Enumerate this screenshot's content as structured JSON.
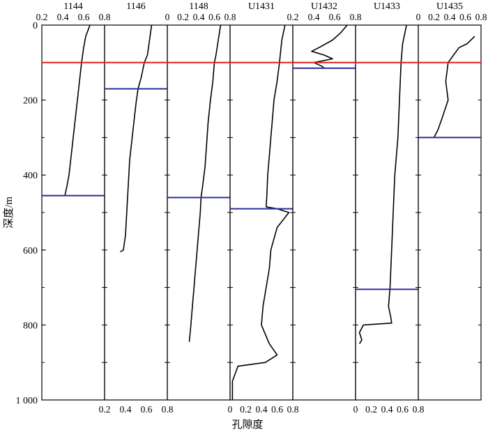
{
  "chart_data": {
    "type": "line",
    "ylabel": "深度/m",
    "xlabel": "孔隙度",
    "ylim": [
      0,
      1000
    ],
    "y_ticks": [
      "0",
      "200",
      "400",
      "600",
      "800",
      "1 000"
    ],
    "reference_depth": 100,
    "colors": {
      "reference_line": "#e0201c",
      "boundary_line": "#2b2f9a",
      "curve": "#000000"
    },
    "panels": [
      {
        "name": "1144",
        "xlim": [
          0.2,
          0.8
        ],
        "top_ticks": [
          "0.2",
          "0.4",
          "0.6",
          "0.8"
        ],
        "bottom_ticks": [],
        "boundary_depth": 455,
        "series": [
          [
            0.66,
            0
          ],
          [
            0.62,
            30
          ],
          [
            0.6,
            60
          ],
          [
            0.58,
            100
          ],
          [
            0.56,
            150
          ],
          [
            0.54,
            200
          ],
          [
            0.52,
            250
          ],
          [
            0.5,
            300
          ],
          [
            0.48,
            350
          ],
          [
            0.46,
            400
          ],
          [
            0.44,
            430
          ],
          [
            0.42,
            455
          ]
        ]
      },
      {
        "name": "1146",
        "xlim": [
          0.2,
          0.8
        ],
        "top_ticks": [],
        "bottom_ticks": [
          "0.2",
          "0.4",
          "0.6",
          "0.8"
        ],
        "boundary_depth": 170,
        "series": [
          [
            0.65,
            0
          ],
          [
            0.63,
            40
          ],
          [
            0.61,
            80
          ],
          [
            0.58,
            100
          ],
          [
            0.55,
            140
          ],
          [
            0.52,
            170
          ],
          [
            0.5,
            210
          ],
          [
            0.48,
            260
          ],
          [
            0.46,
            310
          ],
          [
            0.44,
            360
          ],
          [
            0.43,
            410
          ],
          [
            0.42,
            460
          ],
          [
            0.41,
            510
          ],
          [
            0.4,
            560
          ],
          [
            0.38,
            600
          ],
          [
            0.35,
            605
          ]
        ]
      },
      {
        "name": "1148",
        "xlim": [
          0,
          0.8
        ],
        "top_ticks": [
          "0",
          "0.2",
          "0.4",
          "0.6",
          "0.8"
        ],
        "bottom_ticks": [],
        "boundary_depth": 460,
        "series": [
          [
            0.68,
            0
          ],
          [
            0.65,
            40
          ],
          [
            0.62,
            80
          ],
          [
            0.6,
            100
          ],
          [
            0.58,
            150
          ],
          [
            0.55,
            200
          ],
          [
            0.52,
            260
          ],
          [
            0.5,
            320
          ],
          [
            0.48,
            380
          ],
          [
            0.45,
            430
          ],
          [
            0.43,
            460
          ],
          [
            0.42,
            500
          ],
          [
            0.4,
            550
          ],
          [
            0.38,
            600
          ],
          [
            0.36,
            650
          ],
          [
            0.34,
            700
          ],
          [
            0.32,
            750
          ],
          [
            0.3,
            800
          ],
          [
            0.28,
            845
          ]
        ]
      },
      {
        "name": "U1431",
        "xlim": [
          0,
          0.8
        ],
        "top_ticks": [],
        "bottom_ticks": [
          "0",
          "0.2",
          "0.4",
          "0.6",
          "0.8"
        ],
        "boundary_depth": 490,
        "series": [
          [
            0.7,
            0
          ],
          [
            0.66,
            40
          ],
          [
            0.64,
            80
          ],
          [
            0.63,
            100
          ],
          [
            0.6,
            150
          ],
          [
            0.56,
            200
          ],
          [
            0.54,
            250
          ],
          [
            0.52,
            300
          ],
          [
            0.5,
            350
          ],
          [
            0.48,
            400
          ],
          [
            0.47,
            450
          ],
          [
            0.46,
            485
          ],
          [
            0.6,
            490
          ],
          [
            0.75,
            500
          ],
          [
            0.6,
            540
          ],
          [
            0.52,
            600
          ],
          [
            0.5,
            650
          ],
          [
            0.46,
            700
          ],
          [
            0.42,
            750
          ],
          [
            0.4,
            800
          ],
          [
            0.5,
            850
          ],
          [
            0.6,
            880
          ],
          [
            0.45,
            900
          ],
          [
            0.1,
            910
          ],
          [
            0.03,
            950
          ],
          [
            0.03,
            1000
          ]
        ]
      },
      {
        "name": "U1432",
        "xlim": [
          0.2,
          0.8
        ],
        "top_ticks": [
          "0.2",
          "0.4",
          "0.6",
          "0.8"
        ],
        "bottom_ticks": [],
        "boundary_depth": 115,
        "series": [
          [
            0.72,
            0
          ],
          [
            0.66,
            20
          ],
          [
            0.58,
            40
          ],
          [
            0.45,
            60
          ],
          [
            0.38,
            70
          ],
          [
            0.5,
            80
          ],
          [
            0.58,
            90
          ],
          [
            0.4,
            100
          ],
          [
            0.48,
            110
          ],
          [
            0.5,
            115
          ]
        ]
      },
      {
        "name": "U1433",
        "xlim": [
          0,
          0.8
        ],
        "top_ticks": [],
        "bottom_ticks": [
          "0",
          "0.2",
          "0.4",
          "0.6",
          "0.8"
        ],
        "boundary_depth": 705,
        "series": [
          [
            0.65,
            0
          ],
          [
            0.6,
            50
          ],
          [
            0.58,
            100
          ],
          [
            0.56,
            200
          ],
          [
            0.54,
            300
          ],
          [
            0.5,
            400
          ],
          [
            0.48,
            500
          ],
          [
            0.46,
            600
          ],
          [
            0.44,
            700
          ],
          [
            0.42,
            750
          ],
          [
            0.45,
            780
          ],
          [
            0.46,
            795
          ],
          [
            0.1,
            800
          ],
          [
            0.05,
            820
          ],
          [
            0.08,
            840
          ],
          [
            0.05,
            850
          ]
        ]
      },
      {
        "name": "U1435",
        "xlim": [
          0,
          0.8
        ],
        "top_ticks": [
          "0",
          "0.2",
          "0.4",
          "0.6",
          "0.8"
        ],
        "bottom_ticks": [],
        "boundary_depth": 300,
        "series": [
          [
            0.72,
            30
          ],
          [
            0.62,
            50
          ],
          [
            0.52,
            60
          ],
          [
            0.45,
            80
          ],
          [
            0.38,
            100
          ],
          [
            0.35,
            150
          ],
          [
            0.38,
            200
          ],
          [
            0.3,
            250
          ],
          [
            0.25,
            280
          ],
          [
            0.2,
            300
          ]
        ]
      }
    ]
  }
}
